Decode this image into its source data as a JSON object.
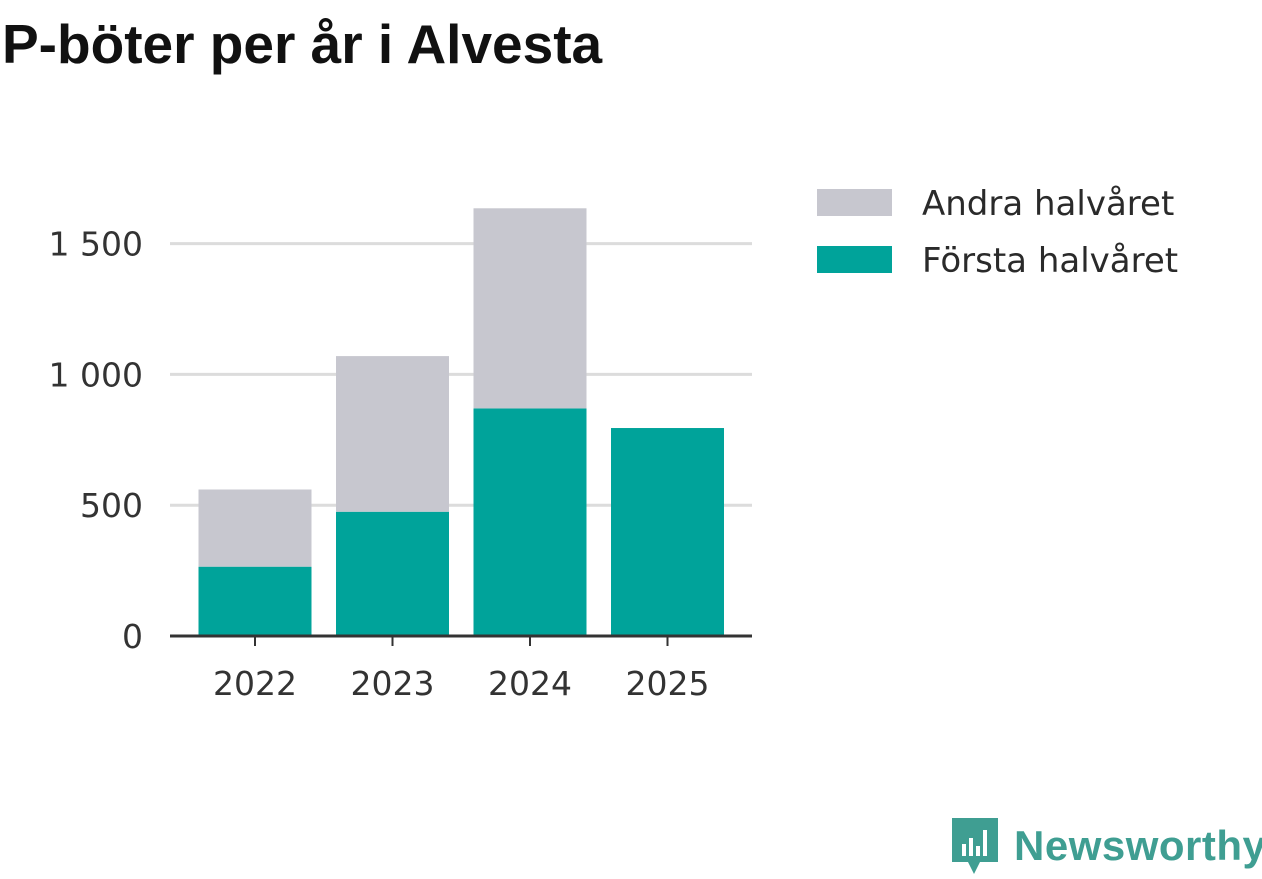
{
  "title": "P-böter per år i Alvesta",
  "colors": {
    "forsta": "#00a39a",
    "andra": "#c7c7cf",
    "grid": "#dcdcdc",
    "axis": "#333333",
    "brand": "#3f9e92"
  },
  "chart_data": {
    "type": "bar",
    "stacked": true,
    "categories": [
      "2022",
      "2023",
      "2024",
      "2025"
    ],
    "series": [
      {
        "name": "Första halvåret",
        "values": [
          265,
          475,
          870,
          795
        ]
      },
      {
        "name": "Andra halvåret",
        "values": [
          295,
          595,
          765,
          0
        ]
      }
    ],
    "ylim": [
      0,
      1750
    ],
    "yticks": [
      0,
      500,
      1000,
      1500
    ],
    "ytick_labels": [
      "0",
      "500",
      "1 000",
      "1 500"
    ],
    "grid": true,
    "legend": [
      "Andra halvåret",
      "Första halvåret"
    ],
    "legend_position": "right",
    "xlabel": "",
    "ylabel": ""
  },
  "brand": {
    "name": "Newsworthy",
    "icon": "newsworthy-logo-icon"
  }
}
